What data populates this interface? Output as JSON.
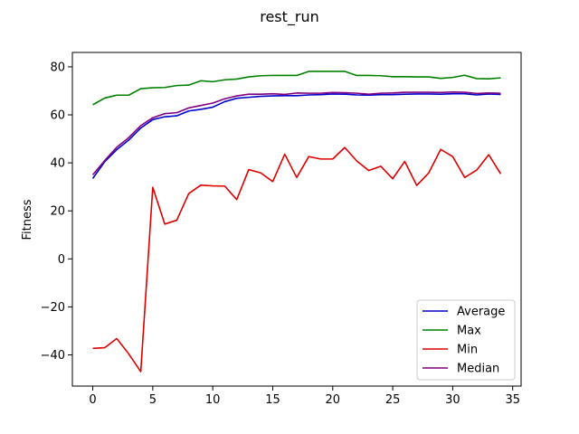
{
  "chart_data": {
    "type": "line",
    "title": "rest_run",
    "xlabel": "",
    "ylabel": "Fitness",
    "xlim": [
      -1.7,
      35.7
    ],
    "ylim": [
      -53,
      86
    ],
    "xticks": [
      0,
      5,
      10,
      15,
      20,
      25,
      30,
      35
    ],
    "yticks": [
      -40,
      -20,
      0,
      20,
      40,
      60,
      80
    ],
    "grid": false,
    "legend_position": "lower-right",
    "x": [
      0,
      1,
      2,
      3,
      4,
      5,
      6,
      7,
      8,
      9,
      10,
      11,
      12,
      13,
      14,
      15,
      16,
      17,
      18,
      19,
      20,
      21,
      22,
      23,
      24,
      25,
      26,
      27,
      28,
      29,
      30,
      31,
      32,
      33,
      34
    ],
    "series": [
      {
        "name": "Average",
        "color": "#0000cc",
        "values": [
          33.5,
          40.5,
          45.5,
          49.5,
          54.5,
          58.0,
          59.2,
          59.6,
          61.6,
          62.3,
          63.2,
          65.5,
          66.9,
          67.3,
          67.7,
          67.9,
          68.0,
          68.0,
          68.3,
          68.4,
          68.7,
          68.6,
          68.3,
          68.2,
          68.4,
          68.4,
          68.6,
          68.7,
          68.7,
          68.6,
          68.8,
          68.8,
          68.3,
          68.7,
          68.5
        ]
      },
      {
        "name": "Max",
        "color": "#008000",
        "values": [
          64.2,
          67.0,
          68.2,
          68.2,
          70.9,
          71.3,
          71.4,
          72.2,
          72.4,
          74.2,
          73.8,
          74.6,
          74.9,
          75.8,
          76.3,
          76.4,
          76.4,
          76.4,
          78.1,
          78.1,
          78.1,
          78.1,
          76.4,
          76.4,
          76.3,
          75.9,
          75.9,
          75.8,
          75.8,
          75.2,
          75.6,
          76.5,
          75.1,
          75.0,
          75.4
        ]
      },
      {
        "name": "Min",
        "color": "#dd0000",
        "values": [
          -37.3,
          -37.0,
          -33.2,
          -39.6,
          -47.0,
          29.8,
          14.5,
          16.1,
          27.2,
          30.7,
          30.4,
          30.3,
          24.7,
          37.2,
          35.8,
          32.2,
          43.6,
          33.9,
          42.6,
          41.6,
          41.6,
          46.4,
          40.8,
          36.8,
          38.6,
          33.4,
          40.6,
          30.6,
          35.8,
          45.6,
          42.6,
          33.9,
          37.0,
          43.4,
          35.4
        ]
      },
      {
        "name": "Median",
        "color": "#800080",
        "values": [
          35.0,
          41.0,
          46.5,
          50.5,
          55.5,
          58.8,
          60.5,
          60.9,
          62.9,
          63.9,
          64.9,
          66.7,
          67.9,
          68.6,
          68.6,
          68.8,
          68.5,
          69.1,
          69.0,
          69.0,
          69.3,
          69.2,
          69.0,
          68.6,
          69.0,
          69.1,
          69.4,
          69.4,
          69.4,
          69.3,
          69.5,
          69.4,
          68.9,
          69.1,
          69.0
        ]
      }
    ]
  }
}
